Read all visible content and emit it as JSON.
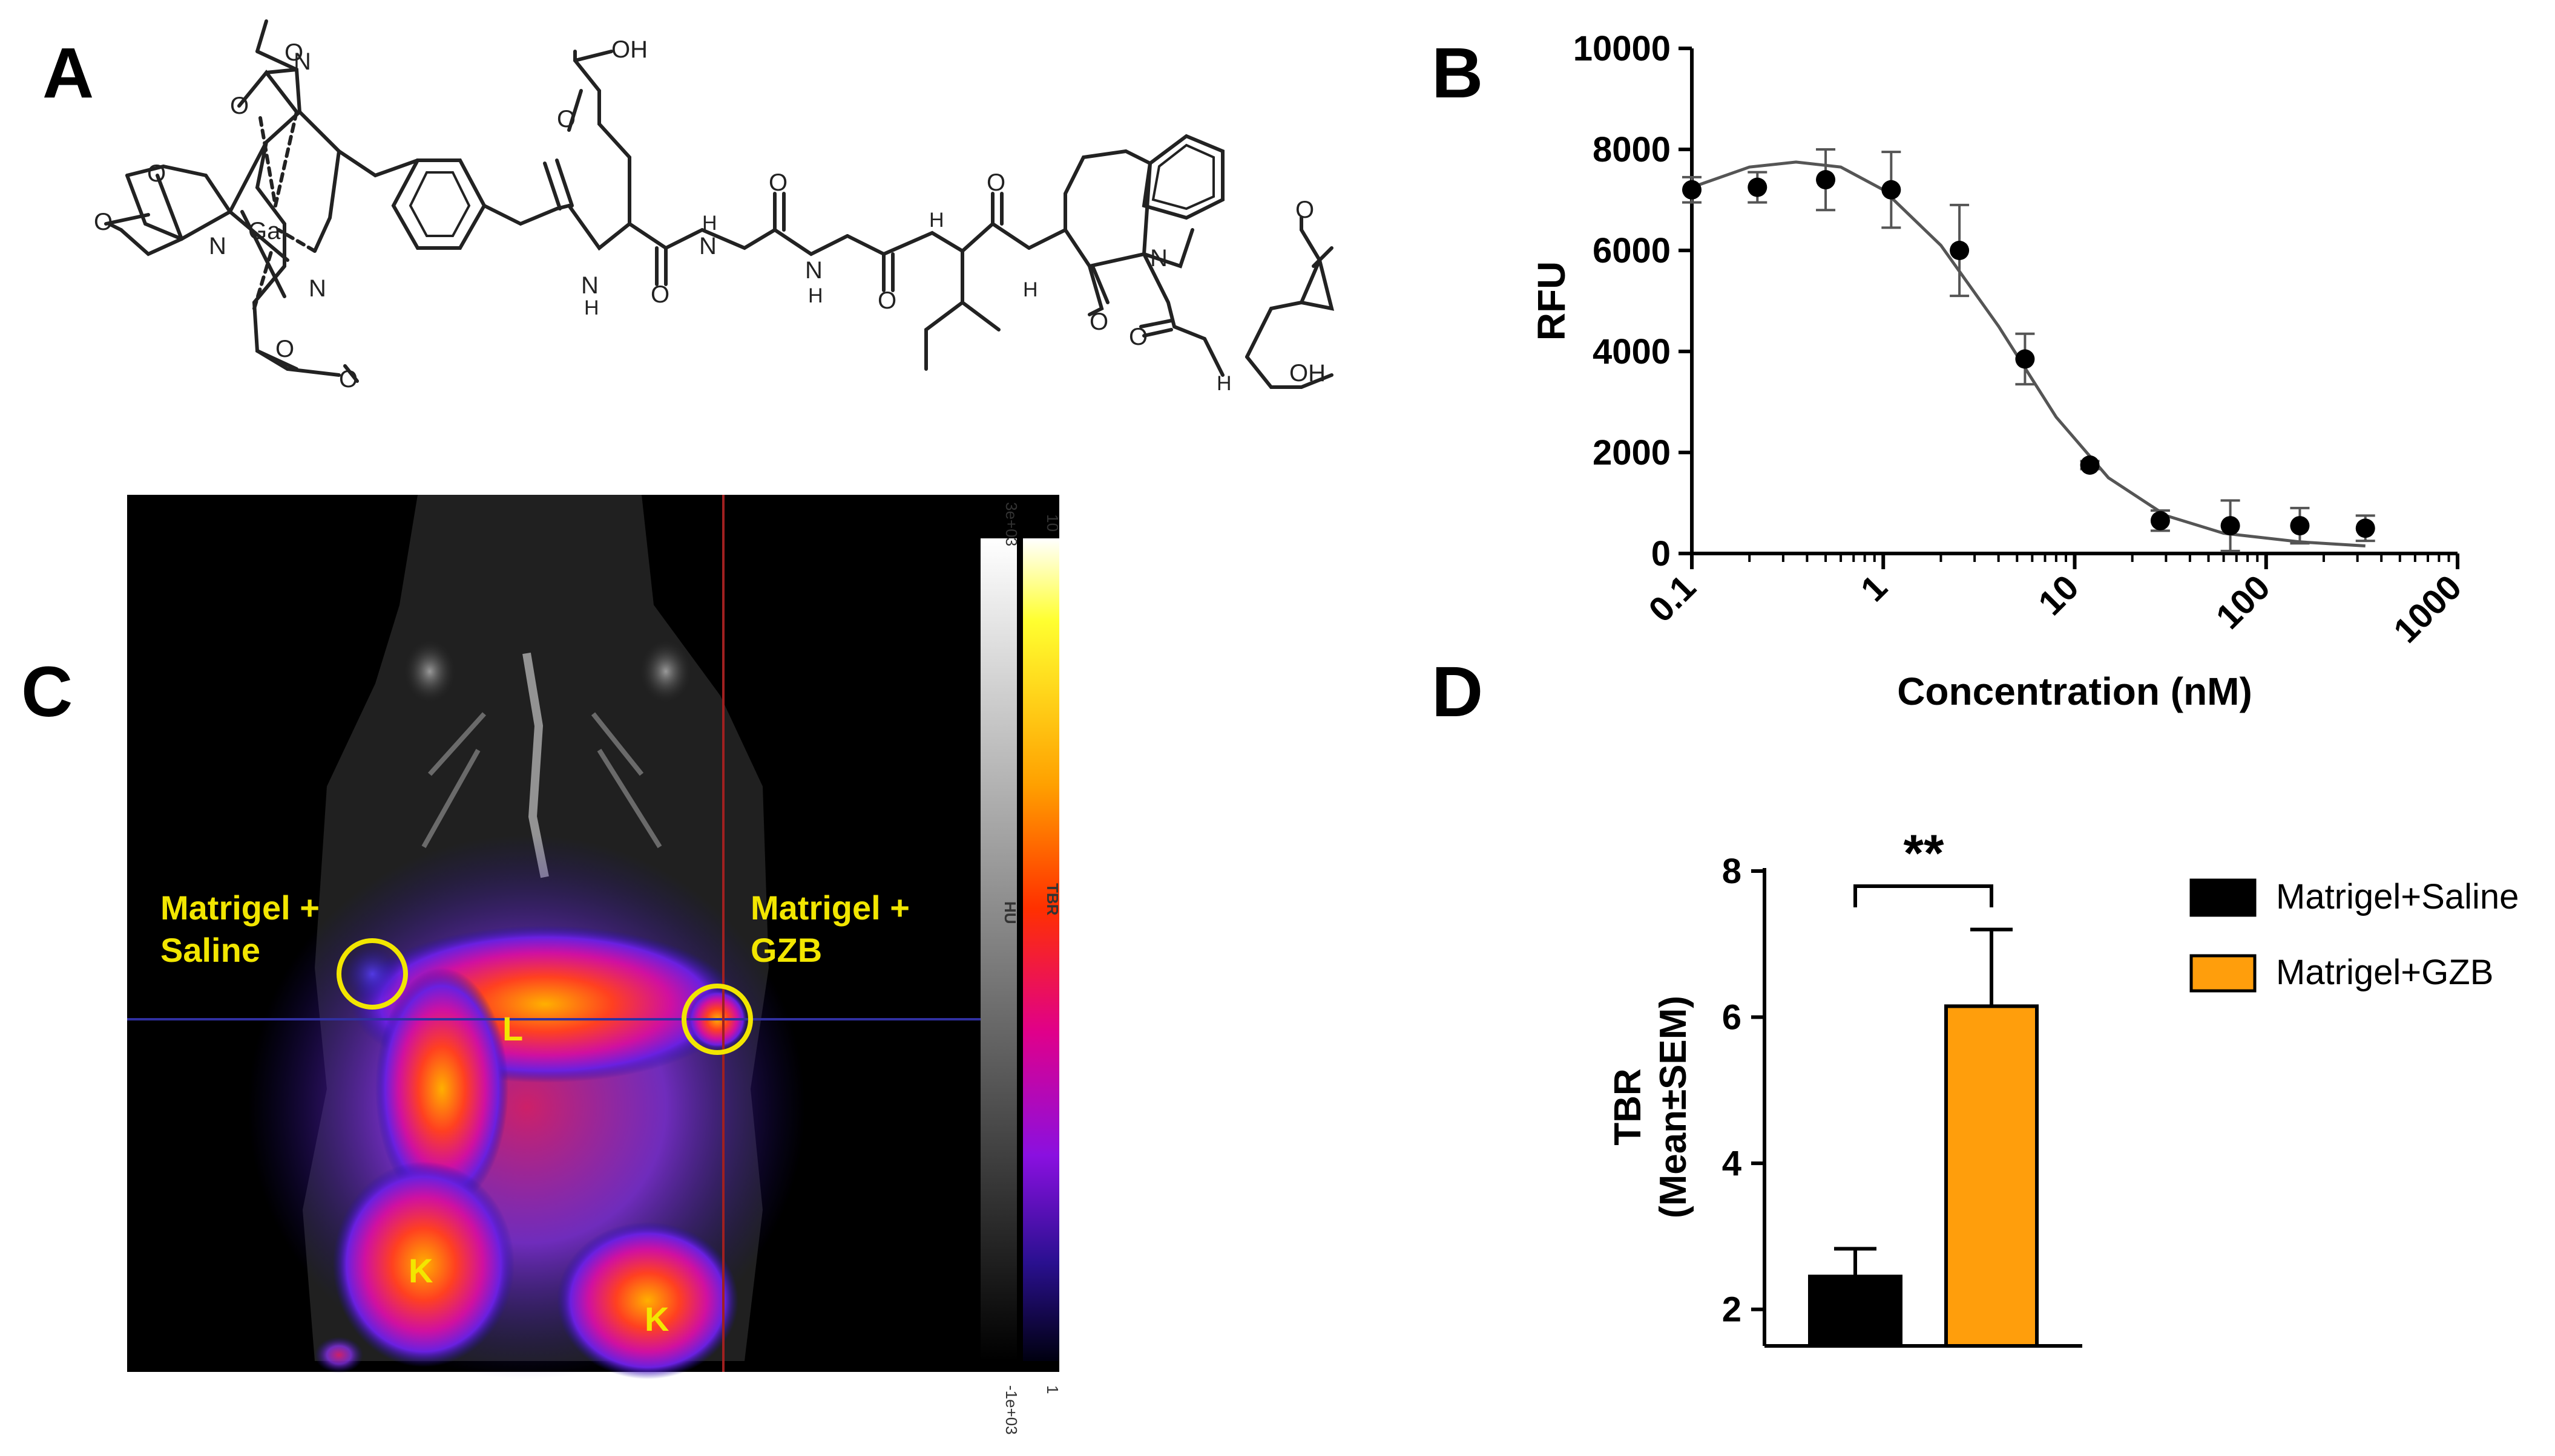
{
  "panels": {
    "a": "A",
    "b": "B",
    "c": "C",
    "d": "D"
  },
  "structure": {
    "labels": [
      "O",
      "O",
      "O",
      "O",
      "O",
      "O",
      "O",
      "O",
      "O",
      "O",
      "O",
      "O",
      "O",
      "O",
      "N",
      "N",
      "N",
      "N",
      "N",
      "N",
      "N",
      "Ga",
      "OH",
      "OH",
      "H",
      "H",
      "H",
      "H",
      "H",
      "H"
    ]
  },
  "chart_b": {
    "type": "scatter",
    "x_scale": "log",
    "xlabel": "Concentration (nM)",
    "ylabel": "RFU",
    "x_ticks": [
      "0.1",
      "1",
      "10",
      "100",
      "1000"
    ],
    "y_ticks": [
      "0",
      "2000",
      "4000",
      "6000",
      "8000",
      "10000"
    ],
    "ylim": [
      0,
      10000
    ],
    "xlim": [
      0.1,
      1000
    ],
    "points": [
      {
        "x": 0.1,
        "y": 7200,
        "err": 250
      },
      {
        "x": 0.22,
        "y": 7250,
        "err": 300
      },
      {
        "x": 0.5,
        "y": 7400,
        "err": 600
      },
      {
        "x": 1.1,
        "y": 7200,
        "err": 750
      },
      {
        "x": 2.5,
        "y": 6000,
        "err": 900
      },
      {
        "x": 5.5,
        "y": 3850,
        "err": 500
      },
      {
        "x": 12,
        "y": 1750,
        "err": 80
      },
      {
        "x": 28,
        "y": 650,
        "err": 200
      },
      {
        "x": 65,
        "y": 550,
        "err": 500
      },
      {
        "x": 150,
        "y": 550,
        "err": 350
      },
      {
        "x": 330,
        "y": 500,
        "err": 250
      }
    ],
    "fit": [
      {
        "x": 0.1,
        "y": 7250
      },
      {
        "x": 0.2,
        "y": 7650
      },
      {
        "x": 0.35,
        "y": 7750
      },
      {
        "x": 0.6,
        "y": 7650
      },
      {
        "x": 1,
        "y": 7200
      },
      {
        "x": 2,
        "y": 6100
      },
      {
        "x": 4,
        "y": 4500
      },
      {
        "x": 8,
        "y": 2700
      },
      {
        "x": 15,
        "y": 1500
      },
      {
        "x": 30,
        "y": 750
      },
      {
        "x": 60,
        "y": 400
      },
      {
        "x": 150,
        "y": 230
      },
      {
        "x": 330,
        "y": 150
      }
    ]
  },
  "image_c": {
    "annotations": {
      "left_site_line1": "Matrigel +",
      "left_site_line2": "Saline",
      "right_site_line1": "Matrigel +",
      "right_site_line2": "GZB",
      "liver": "L",
      "kidney_left": "K",
      "kidney_right": "K"
    },
    "colorbar_hu": {
      "label": "HU",
      "top": "3e+03",
      "bottom": "-1e+03"
    },
    "colorbar_tbr": {
      "label": "TBR",
      "top": "10",
      "bottom": "1"
    }
  },
  "chart_d": {
    "type": "bar",
    "ylabel_line1": "TBR",
    "ylabel_line2": "(Mean±SEM)",
    "y_ticks": [
      "2",
      "4",
      "6",
      "8"
    ],
    "ylim": [
      1.5,
      8
    ],
    "significance": "**",
    "series": [
      {
        "name": "Matrigel+Saline",
        "value": 2.45,
        "err": 0.38,
        "color": "#000000"
      },
      {
        "name": "Matrigel+GZB",
        "value": 6.15,
        "err": 1.05,
        "color": "#ff9e0c"
      }
    ]
  }
}
